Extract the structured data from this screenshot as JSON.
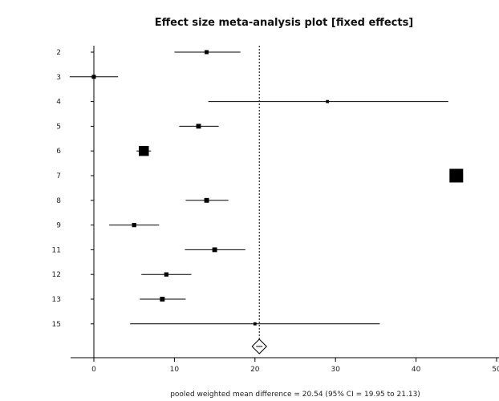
{
  "chart_data": {
    "type": "forest",
    "title": "Effect size meta-analysis plot [fixed effects]",
    "xlim": [
      -3,
      50
    ],
    "x_ticks": [
      0,
      10,
      20,
      30,
      40,
      50
    ],
    "x_tick_labels": [
      "0",
      "10",
      "20",
      "30",
      "40",
      "50"
    ],
    "studies": [
      {
        "label": "2",
        "estimate": 14.0,
        "ci_low": 10.0,
        "ci_high": 18.2,
        "weight": 1
      },
      {
        "label": "3",
        "estimate": 0.0,
        "ci_low": -3.0,
        "ci_high": 3.0,
        "weight": 1
      },
      {
        "label": "4",
        "estimate": 29.0,
        "ci_low": 14.2,
        "ci_high": 44.0,
        "weight": 0.6
      },
      {
        "label": "5",
        "estimate": 13.0,
        "ci_low": 10.6,
        "ci_high": 15.5,
        "weight": 1.3
      },
      {
        "label": "6",
        "estimate": 6.2,
        "ci_low": 5.3,
        "ci_high": 7.1,
        "weight": 3.5
      },
      {
        "label": "7",
        "estimate": 45.0,
        "ci_low": 44.3,
        "ci_high": 45.7,
        "weight": 5
      },
      {
        "label": "8",
        "estimate": 14.0,
        "ci_low": 11.4,
        "ci_high": 16.7,
        "weight": 1.3
      },
      {
        "label": "9",
        "estimate": 5.0,
        "ci_low": 1.9,
        "ci_high": 8.1,
        "weight": 1.1
      },
      {
        "label": "11",
        "estimate": 15.0,
        "ci_low": 11.3,
        "ci_high": 18.8,
        "weight": 1.3
      },
      {
        "label": "12",
        "estimate": 9.0,
        "ci_low": 5.9,
        "ci_high": 12.1,
        "weight": 1.1
      },
      {
        "label": "13",
        "estimate": 8.5,
        "ci_low": 5.7,
        "ci_high": 11.4,
        "weight": 1.3
      },
      {
        "label": "15",
        "estimate": 20.0,
        "ci_low": 4.5,
        "ci_high": 35.5,
        "weight": 0.6
      }
    ],
    "pooled": {
      "estimate": 20.54,
      "ci_low": 19.95,
      "ci_high": 21.13
    },
    "footer_text": "pooled weighted mean difference = 20.54  (95% CI = 19.95 to 21.13)"
  }
}
